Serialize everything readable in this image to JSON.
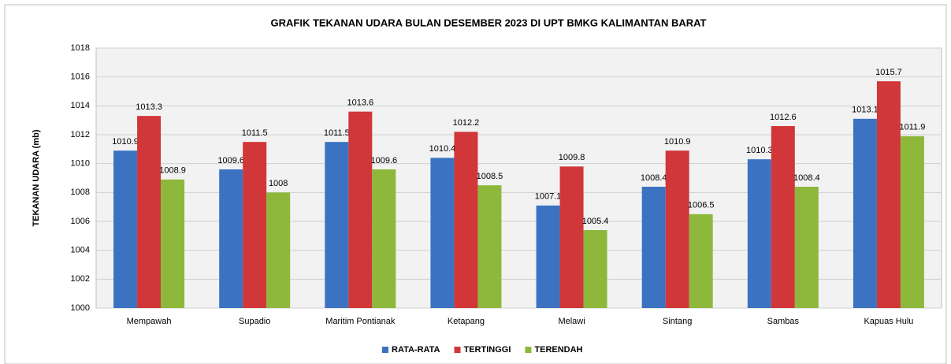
{
  "chart_data": {
    "type": "bar",
    "title": "GRAFIK TEKANAN UDARA BULAN DESEMBER 2023 DI UPT BMKG KALIMANTAN BARAT",
    "y_label": "TEKANAN UDARA (mb)",
    "categories": [
      "Mempawah",
      "Supadio",
      "Maritim Pontianak",
      "Ketapang",
      "Melawi",
      "Sintang",
      "Sambas",
      "Kapuas Hulu"
    ],
    "series": [
      {
        "name": "RATA-RATA",
        "color": "#3b73c2",
        "values": [
          1010.9,
          1009.6,
          1011.5,
          1010.4,
          1007.1,
          1008.4,
          1010.3,
          1013.1
        ]
      },
      {
        "name": "TERTINGGI",
        "color": "#d13638",
        "values": [
          1013.3,
          1011.5,
          1013.6,
          1012.2,
          1009.8,
          1010.9,
          1012.6,
          1015.7
        ]
      },
      {
        "name": "TERENDAH",
        "color": "#8db83c",
        "values": [
          1008.9,
          1008,
          1009.6,
          1008.5,
          1005.4,
          1006.5,
          1008.4,
          1011.9
        ]
      }
    ],
    "ylim": [
      1000,
      1018
    ],
    "yticks": [
      1000,
      1002,
      1004,
      1006,
      1008,
      1010,
      1012,
      1014,
      1016,
      1018
    ],
    "grid": true,
    "legend": "bottom"
  }
}
